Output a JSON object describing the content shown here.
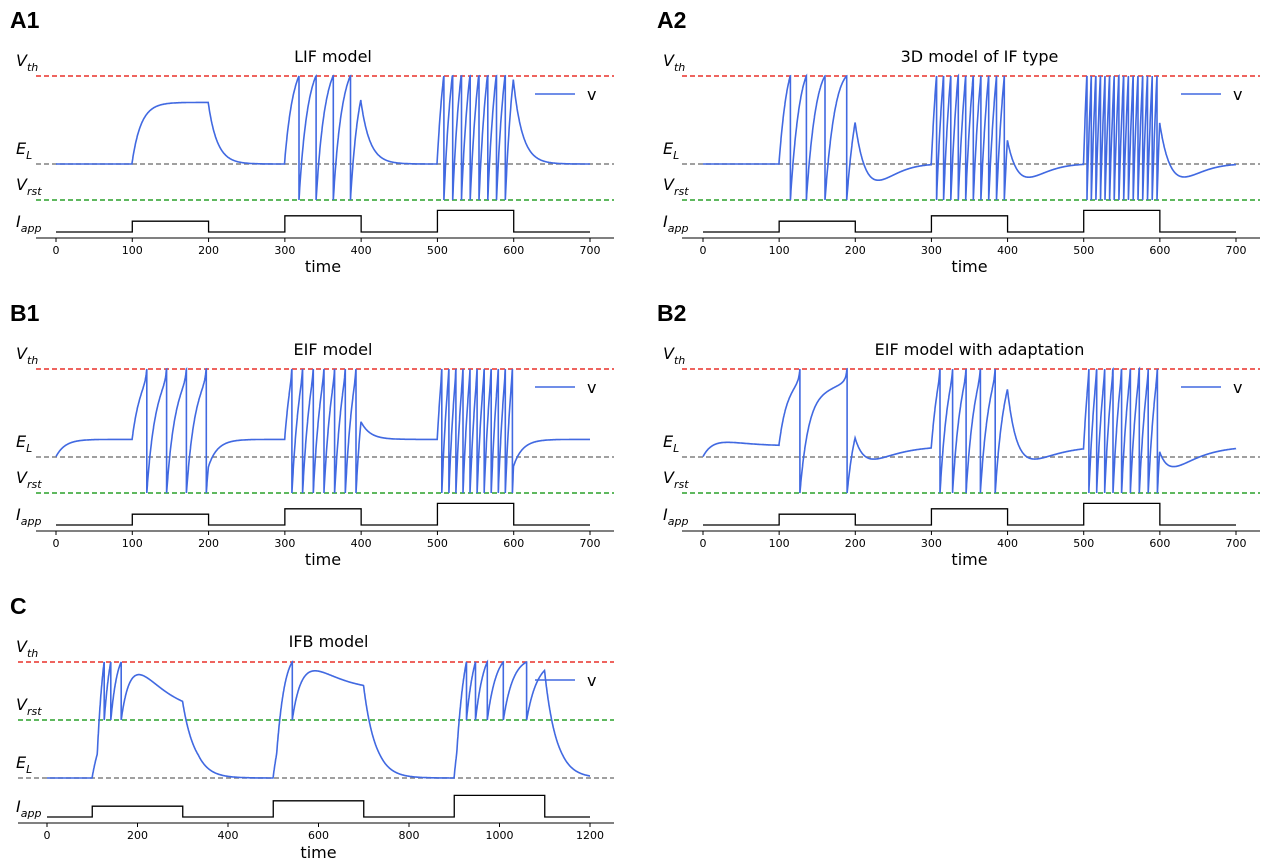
{
  "chart_data": [
    {
      "panel": "A1",
      "type": "line",
      "title": "LIF model",
      "xlabel": "time",
      "xlim": [
        0,
        700
      ],
      "xticks": [
        "0",
        "100",
        "200",
        "300",
        "400",
        "500",
        "600",
        "700"
      ],
      "levels": {
        "V_th": "V",
        "V_th_sub": "th",
        "E_L": "E",
        "E_L_sub": "L",
        "V_rst": "V",
        "V_rst_sub": "rst",
        "I_app": "I",
        "I_app_sub": "app"
      },
      "legend": "v",
      "series": [
        {
          "name": "v",
          "kind": "lif"
        }
      ],
      "i_app_steps": [
        {
          "start": 100,
          "end": 200,
          "level": 1
        },
        {
          "start": 300,
          "end": 400,
          "level": 2
        },
        {
          "start": 500,
          "end": 600,
          "level": 3
        }
      ],
      "colors": {
        "v": "#4169e1",
        "V_th": "#e8302a",
        "E_L": "#808080",
        "V_rst": "#2aa02a",
        "I_app": "#000000"
      }
    },
    {
      "panel": "A2",
      "type": "line",
      "title": "3D model of IF type",
      "xlabel": "time",
      "xlim": [
        0,
        700
      ],
      "xticks": [
        "0",
        "100",
        "200",
        "300",
        "400",
        "500",
        "600",
        "700"
      ],
      "levels": {
        "V_th": "V",
        "V_th_sub": "th",
        "E_L": "E",
        "E_L_sub": "L",
        "V_rst": "V",
        "V_rst_sub": "rst",
        "I_app": "I",
        "I_app_sub": "app"
      },
      "legend": "v",
      "series": [
        {
          "name": "v",
          "kind": "if3d"
        }
      ],
      "i_app_steps": [
        {
          "start": 100,
          "end": 200,
          "level": 1
        },
        {
          "start": 300,
          "end": 400,
          "level": 2
        },
        {
          "start": 500,
          "end": 600,
          "level": 3
        }
      ],
      "colors": {
        "v": "#4169e1",
        "V_th": "#e8302a",
        "E_L": "#808080",
        "V_rst": "#2aa02a",
        "I_app": "#000000"
      }
    },
    {
      "panel": "B1",
      "type": "line",
      "title": "EIF model",
      "xlabel": "time",
      "xlim": [
        0,
        700
      ],
      "xticks": [
        "0",
        "100",
        "200",
        "300",
        "400",
        "500",
        "600",
        "700"
      ],
      "levels": {
        "V_th": "V",
        "V_th_sub": "th",
        "E_L": "E",
        "E_L_sub": "L",
        "V_rst": "V",
        "V_rst_sub": "rst",
        "I_app": "I",
        "I_app_sub": "app"
      },
      "legend": "v",
      "series": [
        {
          "name": "v",
          "kind": "eif"
        }
      ],
      "i_app_steps": [
        {
          "start": 100,
          "end": 200,
          "level": 1
        },
        {
          "start": 300,
          "end": 400,
          "level": 2
        },
        {
          "start": 500,
          "end": 600,
          "level": 3
        }
      ],
      "colors": {
        "v": "#4169e1",
        "V_th": "#e8302a",
        "E_L": "#808080",
        "V_rst": "#2aa02a",
        "I_app": "#000000"
      }
    },
    {
      "panel": "B2",
      "type": "line",
      "title": "EIF model with adaptation",
      "xlabel": "time",
      "xlim": [
        0,
        700
      ],
      "xticks": [
        "0",
        "100",
        "200",
        "300",
        "400",
        "500",
        "600",
        "700"
      ],
      "levels": {
        "V_th": "V",
        "V_th_sub": "th",
        "E_L": "E",
        "E_L_sub": "L",
        "V_rst": "V",
        "V_rst_sub": "rst",
        "I_app": "I",
        "I_app_sub": "app"
      },
      "legend": "v",
      "series": [
        {
          "name": "v",
          "kind": "eifa"
        }
      ],
      "i_app_steps": [
        {
          "start": 100,
          "end": 200,
          "level": 1
        },
        {
          "start": 300,
          "end": 400,
          "level": 2
        },
        {
          "start": 500,
          "end": 600,
          "level": 3
        }
      ],
      "colors": {
        "v": "#4169e1",
        "V_th": "#e8302a",
        "E_L": "#808080",
        "V_rst": "#2aa02a",
        "I_app": "#000000"
      }
    },
    {
      "panel": "C",
      "type": "line",
      "title": "IFB model",
      "xlabel": "time",
      "xlim": [
        0,
        1200
      ],
      "xticks": [
        "0",
        "200",
        "400",
        "600",
        "800",
        "1000",
        "1200"
      ],
      "levels": {
        "V_th": "V",
        "V_th_sub": "th",
        "V_rst": "V",
        "V_rst_sub": "rst",
        "E_L": "E",
        "E_L_sub": "L",
        "I_app": "I",
        "I_app_sub": "app"
      },
      "legend": "v",
      "series": [
        {
          "name": "v",
          "kind": "ifb"
        }
      ],
      "i_app_steps": [
        {
          "start": 100,
          "end": 300,
          "level": 1
        },
        {
          "start": 500,
          "end": 700,
          "level": 2
        },
        {
          "start": 900,
          "end": 1100,
          "level": 3
        }
      ],
      "colors": {
        "v": "#4169e1",
        "V_th": "#e8302a",
        "E_L": "#808080",
        "V_rst": "#2aa02a",
        "I_app": "#000000"
      }
    }
  ]
}
